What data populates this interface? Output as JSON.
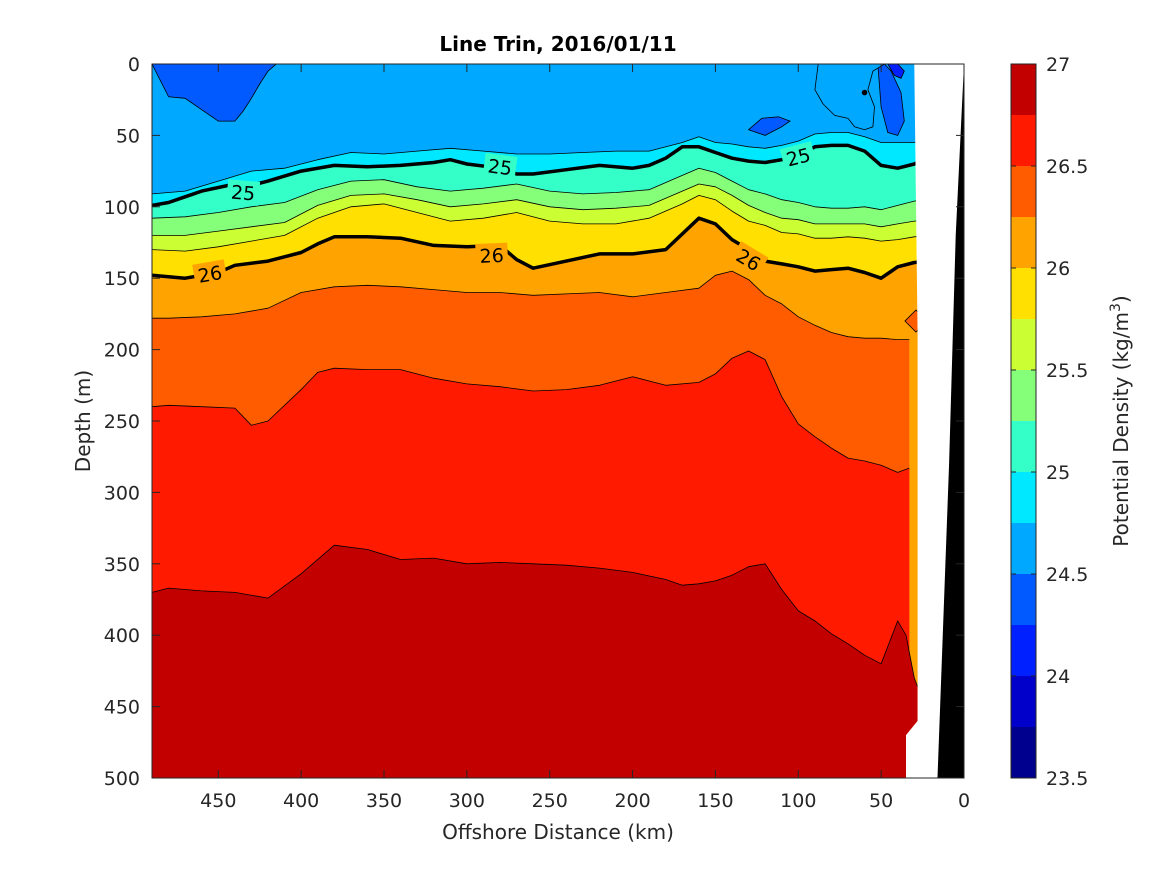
{
  "chart_data": {
    "type": "contour",
    "title": "Line Trin, 2016/01/11",
    "xlabel": "Offshore Distance (km)",
    "ylabel": "Depth (m)",
    "xlim": [
      490,
      0
    ],
    "ylim": [
      0,
      500
    ],
    "x_reversed": true,
    "y_reversed": true,
    "x_ticks": [
      450,
      400,
      350,
      300,
      250,
      200,
      150,
      100,
      50,
      0
    ],
    "y_ticks": [
      0,
      50,
      100,
      150,
      200,
      250,
      300,
      350,
      400,
      450,
      500
    ],
    "colorbar": {
      "label": "Potential Density (kg/m",
      "label_superscript": "3",
      "label_close": ")",
      "range": [
        23.5,
        27
      ],
      "ticks": [
        23.5,
        24,
        24.5,
        25,
        25.5,
        26,
        26.5,
        27
      ],
      "levels": [
        23.5,
        23.75,
        24,
        24.25,
        24.5,
        24.75,
        25,
        25.25,
        25.5,
        25.75,
        26,
        26.25,
        26.5,
        26.75,
        27
      ],
      "colors": [
        "#00008f",
        "#0000ca",
        "#0020ff",
        "#005aff",
        "#00a8ff",
        "#00e8ff",
        "#34ffc9",
        "#85ff7a",
        "#ccff33",
        "#ffe000",
        "#ffa300",
        "#ff5c00",
        "#ff1a00",
        "#c20000"
      ]
    },
    "isopycnals": [
      {
        "level": 26.75,
        "x": [
          490,
          480,
          460,
          440,
          420,
          400,
          380,
          360,
          340,
          320,
          300,
          280,
          260,
          240,
          220,
          200,
          180,
          170,
          160,
          150,
          140,
          130,
          120,
          110,
          100,
          90,
          80,
          70,
          60,
          50,
          40,
          35,
          30,
          28
        ],
        "y": [
          370,
          367,
          369,
          370,
          374,
          357,
          337,
          340,
          347,
          346,
          350,
          349,
          350,
          351,
          353,
          356,
          361,
          365,
          364,
          362,
          358,
          352,
          350,
          368,
          383,
          390,
          399,
          406,
          414,
          420,
          390,
          400,
          430,
          436
        ]
      },
      {
        "level": 26.5,
        "x": [
          490,
          480,
          460,
          440,
          430,
          420,
          400,
          390,
          380,
          360,
          340,
          320,
          300,
          280,
          260,
          240,
          220,
          200,
          180,
          160,
          150,
          140,
          130,
          120,
          110,
          100,
          90,
          80,
          70,
          60,
          50,
          40,
          33
        ],
        "y": [
          240,
          239,
          240,
          241,
          253,
          250,
          228,
          216,
          213,
          214,
          214,
          220,
          224,
          226,
          229,
          228,
          225,
          219,
          225,
          223,
          217,
          206,
          201,
          207,
          233,
          252,
          261,
          269,
          276,
          278,
          281,
          286,
          283
        ]
      },
      {
        "level": 26.25,
        "x": [
          490,
          480,
          460,
          440,
          420,
          400,
          380,
          360,
          340,
          320,
          300,
          280,
          260,
          240,
          220,
          200,
          180,
          160,
          150,
          140,
          130,
          120,
          110,
          100,
          90,
          80,
          70,
          60,
          50,
          40,
          33
        ],
        "y": [
          178,
          178,
          177,
          175,
          171,
          160,
          156,
          155,
          156,
          158,
          160,
          160,
          162,
          161,
          160,
          163,
          160,
          157,
          148,
          145,
          151,
          162,
          168,
          177,
          183,
          188,
          191,
          192,
          192,
          193,
          193
        ]
      },
      {
        "level": 26,
        "labels": [
          {
            "x": 455,
            "y": 147
          },
          {
            "x": 285,
            "y": 134
          },
          {
            "x": 130,
            "y": 137
          }
        ],
        "x": [
          490,
          470,
          450,
          440,
          420,
          400,
          390,
          380,
          360,
          340,
          320,
          300,
          280,
          270,
          260,
          240,
          220,
          200,
          180,
          160,
          150,
          140,
          130,
          120,
          110,
          100,
          90,
          80,
          70,
          60,
          50,
          45,
          40,
          30,
          20
        ],
        "y": [
          148,
          150,
          146,
          141,
          138,
          132,
          126,
          121,
          121,
          122,
          127,
          128,
          127,
          137,
          143,
          138,
          133,
          133,
          130,
          108,
          112,
          123,
          130,
          138,
          140,
          142,
          145,
          144,
          143,
          146,
          150,
          146,
          142,
          139,
          138
        ]
      },
      {
        "level": 25.75,
        "x": [
          490,
          470,
          450,
          430,
          410,
          390,
          370,
          350,
          330,
          310,
          290,
          270,
          250,
          230,
          210,
          190,
          170,
          160,
          150,
          140,
          130,
          120,
          110,
          100,
          90,
          80,
          70,
          60,
          50,
          40,
          30,
          20
        ],
        "y": [
          130,
          131,
          128,
          124,
          120,
          108,
          100,
          98,
          104,
          110,
          108,
          104,
          110,
          112,
          112,
          108,
          98,
          92,
          95,
          103,
          110,
          113,
          118,
          119,
          122,
          122,
          121,
          122,
          124,
          123,
          121,
          120
        ]
      },
      {
        "level": 25.5,
        "x": [
          490,
          470,
          450,
          430,
          410,
          390,
          370,
          350,
          330,
          310,
          290,
          270,
          250,
          230,
          210,
          190,
          170,
          160,
          150,
          140,
          130,
          120,
          110,
          100,
          90,
          80,
          70,
          60,
          50,
          40,
          30,
          20
        ],
        "y": [
          120,
          120,
          117,
          114,
          111,
          99,
          92,
          91,
          95,
          100,
          98,
          95,
          100,
          102,
          101,
          99,
          89,
          84,
          86,
          92,
          99,
          104,
          108,
          109,
          112,
          112,
          112,
          112,
          114,
          112,
          110,
          110
        ]
      },
      {
        "level": 25.25,
        "x": [
          490,
          470,
          450,
          430,
          410,
          390,
          370,
          350,
          330,
          310,
          290,
          270,
          250,
          230,
          210,
          190,
          170,
          160,
          150,
          140,
          130,
          120,
          110,
          100,
          90,
          80,
          70,
          60,
          50,
          40,
          30,
          20
        ],
        "y": [
          108,
          107,
          104,
          100,
          97,
          88,
          82,
          81,
          86,
          89,
          87,
          84,
          89,
          91,
          90,
          88,
          78,
          73,
          76,
          82,
          88,
          91,
          95,
          97,
          100,
          101,
          101,
          100,
          102,
          99,
          96,
          94
        ]
      },
      {
        "level": 25,
        "labels": [
          {
            "x": 435,
            "y": 90
          },
          {
            "x": 280,
            "y": 72
          },
          {
            "x": 100,
            "y": 65
          }
        ],
        "x": [
          490,
          480,
          470,
          460,
          440,
          430,
          420,
          400,
          380,
          360,
          340,
          320,
          310,
          300,
          280,
          270,
          260,
          240,
          220,
          200,
          190,
          180,
          170,
          160,
          150,
          140,
          130,
          120,
          110,
          100,
          90,
          80,
          70,
          60,
          50,
          40,
          30,
          20
        ],
        "y": [
          99,
          97,
          93,
          89,
          84,
          85,
          82,
          75,
          71,
          72,
          71,
          69,
          67,
          70,
          73,
          77,
          77,
          74,
          71,
          73,
          71,
          66,
          58,
          58,
          62,
          66,
          68,
          69,
          67,
          64,
          58,
          57,
          57,
          61,
          71,
          73,
          70,
          64
        ]
      },
      {
        "level": 24.75,
        "x": [
          490,
          470,
          450,
          430,
          410,
          390,
          370,
          350,
          330,
          310,
          290,
          270,
          250,
          230,
          210,
          190,
          170,
          160,
          150,
          140,
          130,
          120,
          110,
          100,
          90,
          80,
          70,
          60,
          50,
          40,
          30,
          20
        ],
        "y": [
          91,
          89,
          82,
          75,
          73,
          67,
          62,
          63,
          61,
          59,
          61,
          63,
          63,
          62,
          61,
          61,
          55,
          51,
          55,
          56,
          58,
          59,
          57,
          54,
          49,
          48,
          48,
          51,
          55,
          55,
          55,
          53
        ]
      }
    ],
    "blue_patches": [
      {
        "level": 24.5,
        "x": [
          490,
          480,
          470,
          460,
          450,
          440,
          435,
          430,
          425,
          420,
          415
        ],
        "y": [
          0,
          23,
          24,
          32,
          40,
          40,
          33,
          24,
          14,
          5,
          0
        ]
      },
      {
        "level": 24.5,
        "x": [
          130,
          120,
          110,
          105,
          112,
          122
        ],
        "y": [
          46,
          50,
          44,
          40,
          37,
          38
        ]
      },
      {
        "level": 24.5,
        "x": [
          52,
          50,
          46,
          40,
          36,
          38,
          44,
          48
        ],
        "y": [
          0,
          30,
          48,
          50,
          40,
          20,
          5,
          0
        ]
      },
      {
        "level": 24.25,
        "x": [
          46,
          42,
          38,
          36,
          40
        ],
        "y": [
          0,
          8,
          10,
          5,
          0
        ]
      }
    ],
    "cyan_patches": [
      {
        "level": 24.75,
        "x": [
          88,
          90,
          85,
          78,
          70,
          66,
          60,
          55,
          54,
          58,
          55,
          48,
          50
        ],
        "y": [
          0,
          18,
          28,
          36,
          38,
          44,
          46,
          44,
          30,
          18,
          5,
          0,
          0
        ]
      }
    ],
    "cyan_dot": {
      "x": 60,
      "y": 20
    },
    "bathymetry_x": [
      28,
      20,
      21,
      25,
      28,
      33,
      34,
      20
    ],
    "bathymetry_y": [
      500,
      500,
      0,
      90,
      200,
      470,
      500,
      500
    ],
    "markers": [
      {
        "x": 29,
        "y": 180,
        "level": 26.25
      }
    ]
  }
}
